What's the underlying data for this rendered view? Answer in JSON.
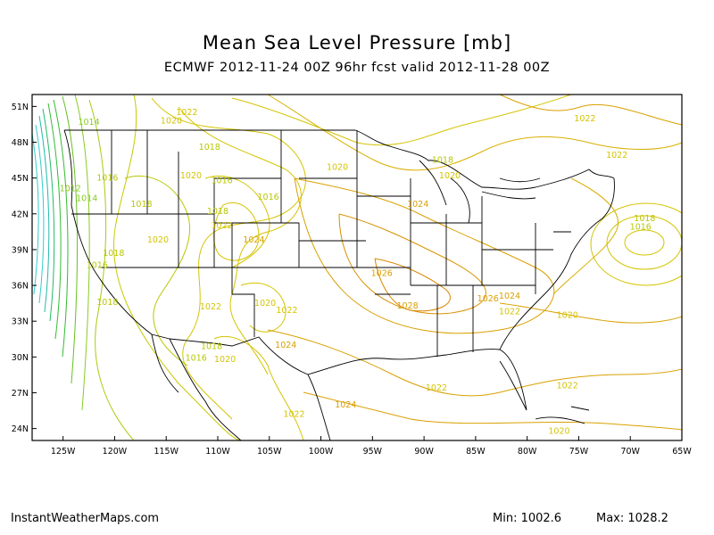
{
  "title": "Mean Sea Level Pressure [mb]",
  "subtitle": "ECMWF 2012-11-24 00Z 96hr fcst valid 2012-11-28 00Z",
  "footer": {
    "site": "InstantWeatherMaps.com",
    "min": "Min: 1002.6",
    "max": "Max: 1028.2"
  },
  "colors": {
    "coast_green": "#33bb33",
    "contour_green": "#88cc22",
    "contour_yellow": "#d4c400",
    "contour_orange": "#d9a000",
    "contour_cyan": "#33cccc",
    "borders": "#000000"
  },
  "map": {
    "lon_labels": [
      "125W",
      "120W",
      "115W",
      "110W",
      "105W",
      "100W",
      "95W",
      "90W",
      "85W",
      "80W",
      "75W",
      "70W",
      "65W"
    ],
    "lat_labels": [
      "51N",
      "48N",
      "45N",
      "42N",
      "39N",
      "36N",
      "33N",
      "30N",
      "27N",
      "24N"
    ],
    "contour_labels": [
      {
        "text": "1014",
        "lon": -122.5,
        "lat": 49.7
      },
      {
        "text": "1020",
        "lon": -114.5,
        "lat": 49.8
      },
      {
        "text": "1022",
        "lon": -113,
        "lat": 50.5
      },
      {
        "text": "1018",
        "lon": -110.8,
        "lat": 47.6
      },
      {
        "text": "1020",
        "lon": -98.4,
        "lat": 45.9
      },
      {
        "text": "1018",
        "lon": -88.2,
        "lat": 46.5
      },
      {
        "text": "1020",
        "lon": -87.5,
        "lat": 45.2
      },
      {
        "text": "1022",
        "lon": -74.4,
        "lat": 50.0
      },
      {
        "text": "1022",
        "lon": -71.3,
        "lat": 46.9
      },
      {
        "text": "1016",
        "lon": -120.7,
        "lat": 45.0
      },
      {
        "text": "1012",
        "lon": -124.3,
        "lat": 44.1
      },
      {
        "text": "1014",
        "lon": -122.7,
        "lat": 43.3
      },
      {
        "text": "1018",
        "lon": -117.4,
        "lat": 42.8
      },
      {
        "text": "1020",
        "lon": -112.6,
        "lat": 45.2
      },
      {
        "text": "1016",
        "lon": -109.6,
        "lat": 44.8
      },
      {
        "text": "1018",
        "lon": -110.0,
        "lat": 42.2
      },
      {
        "text": "1016",
        "lon": -105.1,
        "lat": 43.4
      },
      {
        "text": "1024",
        "lon": -90.6,
        "lat": 42.8
      },
      {
        "text": "1022",
        "lon": -109.6,
        "lat": 41.0
      },
      {
        "text": "1024",
        "lon": -106.5,
        "lat": 39.8
      },
      {
        "text": "1020",
        "lon": -115.8,
        "lat": 39.8
      },
      {
        "text": "1018",
        "lon": -120.1,
        "lat": 38.7
      },
      {
        "text": "1016",
        "lon": -121.7,
        "lat": 37.7
      },
      {
        "text": "1018",
        "lon": -120.7,
        "lat": 34.6
      },
      {
        "text": "1026",
        "lon": -94.1,
        "lat": 37.0
      },
      {
        "text": "1018",
        "lon": -68.6,
        "lat": 41.6
      },
      {
        "text": "1016",
        "lon": -69.0,
        "lat": 40.9
      },
      {
        "text": "1022",
        "lon": -110.7,
        "lat": 34.2
      },
      {
        "text": "1020",
        "lon": -105.4,
        "lat": 34.5
      },
      {
        "text": "1022",
        "lon": -103.3,
        "lat": 33.9
      },
      {
        "text": "1028",
        "lon": -91.6,
        "lat": 34.3
      },
      {
        "text": "1026",
        "lon": -83.8,
        "lat": 34.9
      },
      {
        "text": "1024",
        "lon": -81.7,
        "lat": 35.1
      },
      {
        "text": "1022",
        "lon": -81.7,
        "lat": 33.8
      },
      {
        "text": "1020",
        "lon": -76.1,
        "lat": 33.5
      },
      {
        "text": "1018",
        "lon": -110.6,
        "lat": 30.9
      },
      {
        "text": "1016",
        "lon": -112.1,
        "lat": 29.9
      },
      {
        "text": "1020",
        "lon": -109.3,
        "lat": 29.8
      },
      {
        "text": "1024",
        "lon": -103.4,
        "lat": 31.0
      },
      {
        "text": "1022",
        "lon": -88.8,
        "lat": 27.4
      },
      {
        "text": "1024",
        "lon": -97.6,
        "lat": 26.0
      },
      {
        "text": "1022",
        "lon": -102.6,
        "lat": 25.2
      },
      {
        "text": "1022",
        "lon": -76.1,
        "lat": 27.6
      },
      {
        "text": "1020",
        "lon": -76.9,
        "lat": 23.8
      }
    ]
  }
}
